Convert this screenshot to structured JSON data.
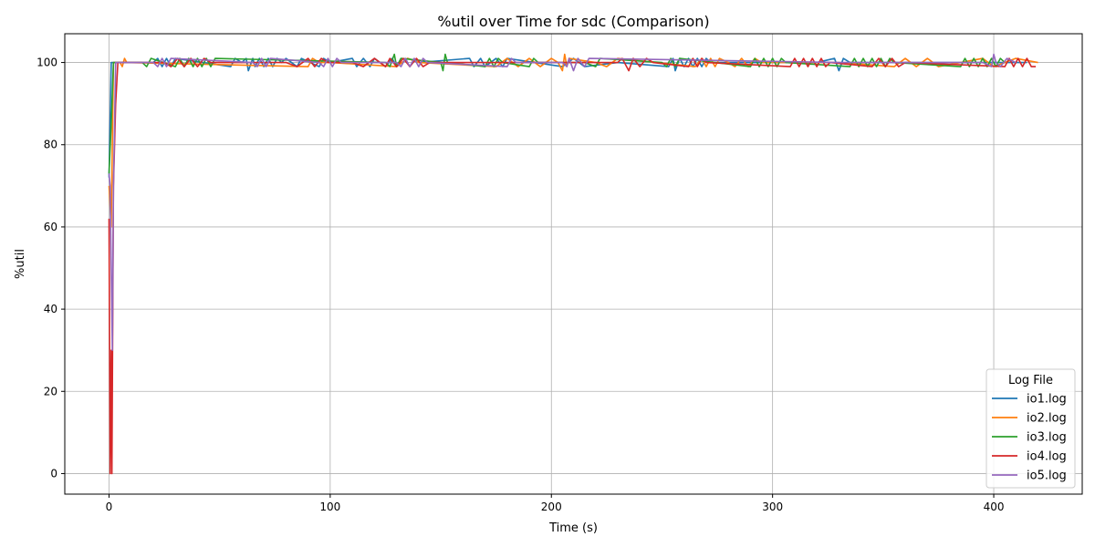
{
  "chart_data": {
    "type": "line",
    "title": "%util over Time for sdc (Comparison)",
    "xlabel": "Time (s)",
    "ylabel": "%util",
    "xlim": [
      -20,
      440
    ],
    "ylim": [
      -5,
      107
    ],
    "xticks": [
      0,
      100,
      200,
      300,
      400
    ],
    "yticks": [
      0,
      20,
      40,
      60,
      80,
      100
    ],
    "grid": true,
    "legend": {
      "title": "Log File",
      "placement": "lower-right"
    },
    "series": [
      {
        "name": "io1.log",
        "color": "#1f77b4",
        "x": [
          0,
          1,
          2,
          3,
          20,
          22,
          24,
          26,
          28,
          30,
          55,
          57,
          60,
          62,
          63,
          65,
          66,
          68,
          70,
          72,
          74,
          76,
          78,
          80,
          85,
          87,
          95,
          97,
          100,
          110,
          112,
          115,
          118,
          120,
          125,
          128,
          130,
          135,
          140,
          163,
          165,
          168,
          170,
          175,
          178,
          180,
          205,
          210,
          215,
          230,
          253,
          255,
          256,
          258,
          260,
          262,
          264,
          266,
          268,
          270,
          272,
          300,
          310,
          320,
          328,
          330,
          332,
          335,
          350,
          370,
          400,
          410,
          415
        ],
        "y": [
          72,
          100,
          100,
          100,
          100,
          101,
          99,
          101,
          99,
          101,
          99,
          101,
          100,
          101,
          98,
          101,
          99,
          101,
          99,
          101,
          99,
          101,
          100,
          101,
          99,
          101,
          99,
          101,
          100,
          101,
          99,
          101,
          99,
          101,
          99,
          101,
          99,
          101,
          100,
          101,
          99,
          101,
          99,
          101,
          99,
          101,
          99,
          101,
          99,
          100,
          99,
          101,
          98,
          101,
          99,
          101,
          99,
          101,
          99,
          101,
          100,
          100,
          100,
          100,
          101,
          98,
          101,
          100,
          100,
          100,
          100,
          100,
          100
        ]
      },
      {
        "name": "io2.log",
        "color": "#ff7f0e",
        "x": [
          0,
          1,
          2,
          3,
          5,
          6,
          7,
          8,
          90,
          92,
          95,
          100,
          130,
          135,
          140,
          175,
          180,
          185,
          190,
          195,
          200,
          203,
          205,
          206,
          207,
          208,
          220,
          225,
          230,
          265,
          268,
          270,
          272,
          274,
          276,
          280,
          283,
          286,
          289,
          292,
          295,
          330,
          355,
          360,
          365,
          370,
          375,
          395,
          400,
          410,
          420
        ],
        "y": [
          70,
          60,
          100,
          100,
          100,
          99,
          101,
          100,
          99,
          101,
          100,
          100,
          99,
          101,
          100,
          99,
          101,
          99,
          101,
          99,
          101,
          100,
          98,
          102,
          99,
          101,
          100,
          99,
          101,
          99,
          101,
          99,
          101,
          99,
          101,
          100,
          99,
          101,
          99,
          101,
          100,
          100,
          99,
          101,
          99,
          101,
          99,
          101,
          99,
          101,
          100
        ]
      },
      {
        "name": "io3.log",
        "color": "#2ca02c",
        "x": [
          0,
          1,
          2,
          3,
          15,
          17,
          19,
          30,
          32,
          34,
          36,
          38,
          40,
          42,
          44,
          46,
          48,
          125,
          127,
          129,
          130,
          132,
          150,
          151,
          152,
          153,
          170,
          172,
          174,
          176,
          178,
          190,
          192,
          194,
          215,
          220,
          222,
          250,
          252,
          254,
          256,
          258,
          290,
          292,
          294,
          296,
          298,
          300,
          302,
          304,
          306,
          335,
          337,
          339,
          341,
          343,
          345,
          347,
          349,
          351,
          353,
          355,
          385,
          387,
          389,
          391,
          393,
          395,
          397,
          399,
          401,
          403,
          405
        ],
        "y": [
          73,
          85,
          100,
          100,
          100,
          99,
          101,
          99,
          101,
          99,
          101,
          99,
          101,
          99,
          101,
          99,
          101,
          100,
          99,
          102,
          99,
          101,
          100,
          98,
          102,
          100,
          99,
          101,
          99,
          101,
          100,
          99,
          101,
          100,
          100,
          99,
          101,
          100,
          99,
          101,
          99,
          101,
          99,
          101,
          99,
          101,
          99,
          101,
          99,
          101,
          100,
          99,
          101,
          99,
          101,
          99,
          101,
          99,
          101,
          99,
          101,
          100,
          99,
          101,
          99,
          101,
          99,
          101,
          99,
          101,
          99,
          101,
          100
        ]
      },
      {
        "name": "io4.log",
        "color": "#d62728",
        "x": [
          0,
          0.5,
          1,
          1.3,
          2,
          3,
          4,
          5,
          25,
          28,
          31,
          34,
          37,
          40,
          43,
          46,
          80,
          85,
          90,
          93,
          96,
          99,
          110,
          115,
          120,
          125,
          127,
          130,
          133,
          136,
          139,
          142,
          145,
          230,
          232,
          235,
          237,
          240,
          243,
          246,
          262,
          264,
          266,
          268,
          270,
          308,
          310,
          312,
          314,
          316,
          318,
          320,
          322,
          324,
          326,
          345,
          348,
          351,
          354,
          357,
          360,
          405,
          407,
          409,
          411,
          413,
          415,
          417,
          419
        ],
        "y": [
          62,
          0,
          30,
          0,
          70,
          90,
          100,
          100,
          100,
          99,
          101,
          99,
          101,
          99,
          101,
          100,
          100,
          99,
          101,
          99,
          101,
          100,
          100,
          99,
          101,
          99,
          101,
          99,
          101,
          99,
          101,
          99,
          100,
          100,
          101,
          98,
          101,
          99,
          101,
          100,
          99,
          101,
          99,
          101,
          100,
          99,
          101,
          99,
          101,
          99,
          101,
          99,
          101,
          99,
          100,
          99,
          101,
          99,
          101,
          99,
          100,
          99,
          101,
          99,
          101,
          99,
          101,
          99,
          99
        ]
      },
      {
        "name": "io5.log",
        "color": "#9467bd",
        "x": [
          0,
          0.5,
          1,
          1.5,
          2,
          3,
          20,
          22,
          24,
          26,
          28,
          65,
          67,
          69,
          71,
          73,
          95,
          97,
          99,
          101,
          103,
          105,
          130,
          132,
          134,
          136,
          138,
          140,
          142,
          144,
          180,
          182,
          184,
          205,
          207,
          208,
          210,
          212,
          215,
          217,
          330,
          360,
          375,
          395,
          399,
          400,
          401,
          403,
          406,
          410
        ],
        "y": [
          73,
          70,
          50,
          30,
          70,
          100,
          100,
          99,
          101,
          99,
          101,
          100,
          99,
          101,
          99,
          101,
          100,
          99,
          101,
          99,
          101,
          100,
          100,
          99,
          101,
          99,
          101,
          99,
          101,
          100,
          99,
          101,
          100,
          100,
          99,
          101,
          98,
          101,
          99,
          101,
          100,
          100,
          100,
          100,
          99,
          102,
          100,
          99,
          101,
          100
        ]
      }
    ]
  }
}
